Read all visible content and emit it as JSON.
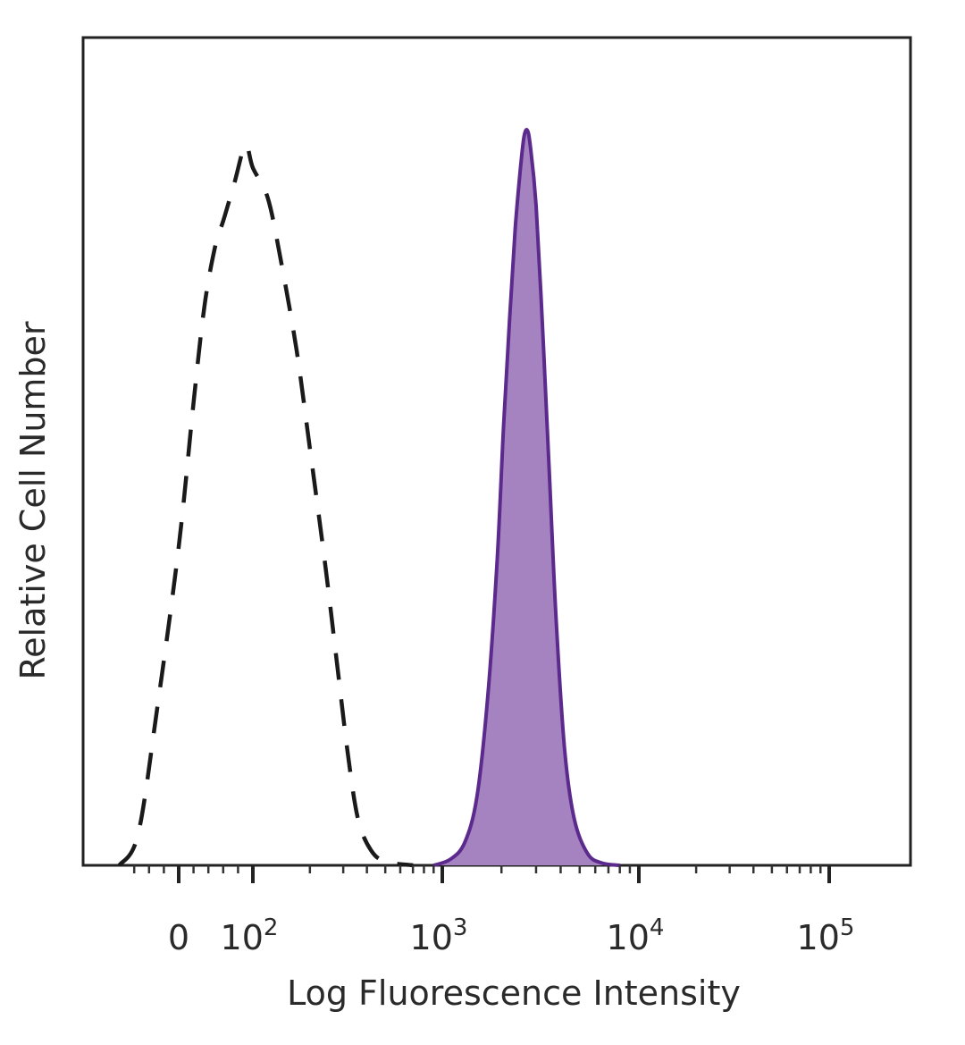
{
  "chart_data": {
    "type": "area",
    "title": "",
    "xlabel": "Log Fluorescence Intensity",
    "ylabel": "Relative Cell Number",
    "xscale": "logicle",
    "xlim": [
      -80,
      200000
    ],
    "ylim": [
      0,
      100
    ],
    "grid": false,
    "legend": "none",
    "x_ticks": [
      {
        "value": 0,
        "base": "0",
        "exp": ""
      },
      {
        "value": 100,
        "base": "10",
        "exp": "2"
      },
      {
        "value": 1000,
        "base": "10",
        "exp": "3"
      },
      {
        "value": 10000,
        "base": "10",
        "exp": "4"
      },
      {
        "value": 100000,
        "base": "10",
        "exp": "5"
      }
    ],
    "series": [
      {
        "style": "dashed",
        "color": "#1a1a1a",
        "filled": false,
        "points": [
          [
            -80,
            0
          ],
          [
            -55,
            4
          ],
          [
            -30,
            20
          ],
          [
            0,
            42
          ],
          [
            20,
            61
          ],
          [
            35,
            74
          ],
          [
            50,
            82
          ],
          [
            60,
            85
          ],
          [
            75,
            90
          ],
          [
            90,
            95
          ],
          [
            100,
            92
          ],
          [
            120,
            88
          ],
          [
            140,
            80
          ],
          [
            170,
            68
          ],
          [
            200,
            55
          ],
          [
            240,
            40
          ],
          [
            280,
            26
          ],
          [
            320,
            14
          ],
          [
            360,
            6
          ],
          [
            420,
            2
          ],
          [
            500,
            0.5
          ],
          [
            700,
            0
          ]
        ]
      },
      {
        "style": "solid",
        "color": "#5b2a8c",
        "fill": "#a583c0",
        "filled": true,
        "points": [
          [
            900,
            0
          ],
          [
            1100,
            0.8
          ],
          [
            1300,
            3
          ],
          [
            1500,
            9
          ],
          [
            1700,
            22
          ],
          [
            1900,
            40
          ],
          [
            2050,
            58
          ],
          [
            2200,
            72
          ],
          [
            2350,
            84
          ],
          [
            2500,
            92
          ],
          [
            2600,
            96
          ],
          [
            2700,
            97
          ],
          [
            2800,
            95
          ],
          [
            3000,
            87
          ],
          [
            3250,
            70
          ],
          [
            3500,
            52
          ],
          [
            3800,
            32
          ],
          [
            4200,
            15
          ],
          [
            4700,
            6
          ],
          [
            5500,
            1.5
          ],
          [
            6500,
            0.3
          ],
          [
            8000,
            0
          ]
        ]
      }
    ]
  }
}
